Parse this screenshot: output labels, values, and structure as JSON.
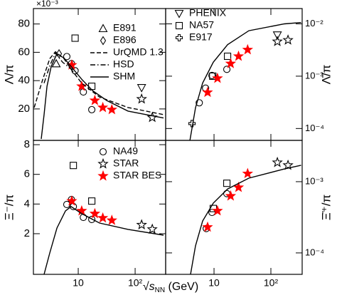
{
  "chart_data": [
    {
      "type": "scatter",
      "ylabel": "Λ/π",
      "scale_label": "×10⁻³",
      "xlog": true,
      "ylog": false,
      "legend": "upper right",
      "xlim": [
        1.63,
        344
      ],
      "xticks": [
        10,
        100
      ],
      "ylim": [
        -2.2,
        90.9
      ],
      "yticks": [
        20,
        40,
        60,
        80
      ],
      "series": [
        {
          "name": "E891",
          "marker": "triangle-up",
          "color": "#000000",
          "x": [
            4.1
          ],
          "values": [
            52
          ]
        },
        {
          "name": "E896",
          "marker": "diamond",
          "color": "#000000",
          "x": [
            4.6
          ],
          "values": [
            59
          ]
        },
        {
          "marker": "circle",
          "color": "#000000",
          "x": [
            6.3,
            7.6,
            8.8,
            12.3,
            17.3
          ],
          "values": [
            57,
            52,
            47,
            32,
            19.5
          ]
        },
        {
          "marker": "square",
          "color": "#000000",
          "x": [
            8.8,
            17.3
          ],
          "values": [
            70,
            36
          ]
        },
        {
          "marker": "triangle-down",
          "color": "#000000",
          "x": [
            130
          ],
          "values": [
            35
          ]
        },
        {
          "marker": "star",
          "color": "#000000",
          "x": [
            130,
            200
          ],
          "values": [
            27,
            14
          ]
        },
        {
          "marker": "star-filled",
          "color": "#ff0000",
          "x": [
            7.7,
            11.5,
            19.6,
            27,
            39
          ],
          "values": [
            51,
            36,
            26,
            21,
            19.5
          ]
        },
        {
          "name": "UrQMD 1.3",
          "line": "dashed",
          "color": "#000000",
          "x": [
            1.68,
            2.37,
            3.16,
            3.98,
            5.62,
            7.5,
            11.5,
            23.7,
            75,
            316
          ],
          "values": [
            21,
            40.7,
            55.5,
            60.4,
            55.5,
            48,
            38.2,
            28.4,
            21,
            16
          ]
        },
        {
          "name": "HSD",
          "line": "dashdot",
          "color": "#000000",
          "x": [
            2.51,
            3.16,
            3.98,
            5.3,
            6.8,
            8.0
          ],
          "values": [
            38.2,
            50.5,
            59.4,
            53,
            49.6,
            47.6
          ]
        },
        {
          "name": "SHM",
          "line": "solid",
          "color": "#000000",
          "x": [
            2.24,
            2.51,
            2.82,
            3.35,
            4.22,
            5.62,
            7.5,
            11.5,
            17.8,
            31.6,
            75,
            316
          ],
          "values": [
            -1.2,
            16,
            36,
            50,
            59,
            56,
            50,
            41,
            33,
            26,
            18.5,
            13.6
          ]
        }
      ]
    },
    {
      "type": "scatter",
      "ylabel": "Λ̄/π",
      "xlog": true,
      "ylog": true,
      "legend": "upper left",
      "xlim": [
        1.41,
        355
      ],
      "xticks": [
        10,
        100
      ],
      "ylim": [
        5.93e-05,
        0.0196
      ],
      "yticks": [
        {
          "value": 0.0001,
          "label": "10⁻⁴"
        },
        {
          "value": 0.001,
          "label": "10⁻³"
        },
        {
          "value": 0.01,
          "label": "10⁻²"
        }
      ],
      "series": [
        {
          "name": "PHENIX",
          "marker": "triangle-down",
          "color": "#000000",
          "x": [
            130
          ],
          "values": [
            0.0061
          ]
        },
        {
          "name": "NA57",
          "marker": "square",
          "color": "#000000",
          "x": [
            9.5,
            17.3
          ],
          "values": [
            0.001,
            0.0024
          ]
        },
        {
          "name": "E917",
          "marker": "cross",
          "color": "#000000",
          "x": [
            4.1
          ],
          "values": [
            0.000124
          ]
        },
        {
          "marker": "circle",
          "color": "#000000",
          "x": [
            5.5,
            7.1,
            9.2,
            16.8
          ],
          "values": [
            0.00031,
            0.00059,
            0.00103,
            0.00135
          ]
        },
        {
          "marker": "star",
          "color": "#000000",
          "x": [
            130,
            200
          ],
          "values": [
            0.0046,
            0.0049
          ]
        },
        {
          "marker": "star-filled",
          "color": "#ff0000",
          "x": [
            7.7,
            11.5,
            19.6,
            27,
            39
          ],
          "values": [
            0.00049,
            0.00091,
            0.00174,
            0.0024,
            0.0032
          ]
        },
        {
          "line": "solid",
          "color": "#000000",
          "x": [
            3.76,
            4.73,
            6.31,
            9.7,
            17.3,
            41,
            173,
            340
          ],
          "values": [
            5.9e-05,
            0.00025,
            0.00074,
            0.00185,
            0.004,
            0.0074,
            0.01,
            0.0106
          ]
        }
      ]
    },
    {
      "type": "scatter",
      "ylabel": "Ξ⁻/π",
      "xlog": true,
      "ylog": false,
      "legend": "upper right",
      "xlim": [
        1.63,
        344
      ],
      "xticks": [
        10,
        {
          "value": 100,
          "label": "10²"
        }
      ],
      "ylim": [
        -0.74,
        8.29
      ],
      "yticks": [
        2,
        4,
        6,
        8
      ],
      "series": [
        {
          "name": "NA49",
          "marker": "circle",
          "color": "#000000",
          "x": [
            6.3,
            7.6,
            8.2,
            12.3,
            17.3
          ],
          "values": [
            3.97,
            4.3,
            3.83,
            3.1,
            2.96
          ]
        },
        {
          "name": "STAR",
          "marker": "star",
          "color": "#000000",
          "x": [
            130,
            200
          ],
          "values": [
            2.6,
            2.3
          ]
        },
        {
          "name": "STAR BES",
          "marker": "star-filled",
          "color": "#ff0000",
          "x": [
            7.7,
            11.5,
            19.6,
            27,
            39
          ],
          "values": [
            4.2,
            3.54,
            3.35,
            3.06,
            2.9
          ]
        },
        {
          "marker": "square",
          "color": "#000000",
          "x": [
            8.2,
            17.3
          ],
          "values": [
            6.6,
            4.2
          ]
        },
        {
          "line": "solid",
          "color": "#000000",
          "x": [
            2.51,
            3.16,
            4.22,
            5.96,
            7.5,
            11.5,
            23.7,
            75,
            316
          ],
          "values": [
            -0.74,
            0.7,
            2.38,
            3.54,
            3.83,
            3.35,
            2.72,
            2.29,
            1.9
          ]
        }
      ]
    },
    {
      "type": "scatter",
      "ylabel": "Ξ̄⁺/π",
      "xlog": true,
      "ylog": true,
      "xlim": [
        1.41,
        355
      ],
      "xticks": [
        10,
        {
          "value": 100,
          "label": "10²"
        }
      ],
      "ylim": [
        5e-05,
        0.0038
      ],
      "yticks": [
        {
          "value": 0.0001,
          "label": "10⁻⁴"
        },
        {
          "value": 0.001,
          "label": "10⁻³"
        }
      ],
      "series": [
        {
          "marker": "circle",
          "color": "#000000",
          "x": [
            7.3,
            9.2,
            16.8
          ],
          "values": [
            0.00022,
            0.00037,
            0.00068
          ]
        },
        {
          "marker": "square",
          "color": "#000000",
          "x": [
            9.7,
            16.8
          ],
          "values": [
            0.00042,
            0.00095
          ]
        },
        {
          "marker": "star-filled",
          "color": "#ff0000",
          "x": [
            7.7,
            11.5,
            19.6,
            27,
            39
          ],
          "values": [
            0.00023,
            0.00039,
            0.00063,
            0.00083,
            0.0013
          ]
        },
        {
          "marker": "star",
          "color": "#000000",
          "x": [
            130,
            200
          ],
          "values": [
            0.00186,
            0.0017
          ]
        },
        {
          "line": "solid",
          "color": "#000000",
          "x": [
            3.86,
            4.73,
            6.31,
            9.7,
            17.3,
            41,
            173,
            340
          ],
          "values": [
            5e-05,
            0.000126,
            0.00028,
            0.0005,
            0.00079,
            0.00112,
            0.00151,
            0.0017
          ]
        }
      ]
    }
  ],
  "xlabel": {
    "root": "√",
    "var": "s",
    "sub": "NN",
    "unit": " (GeV)"
  }
}
